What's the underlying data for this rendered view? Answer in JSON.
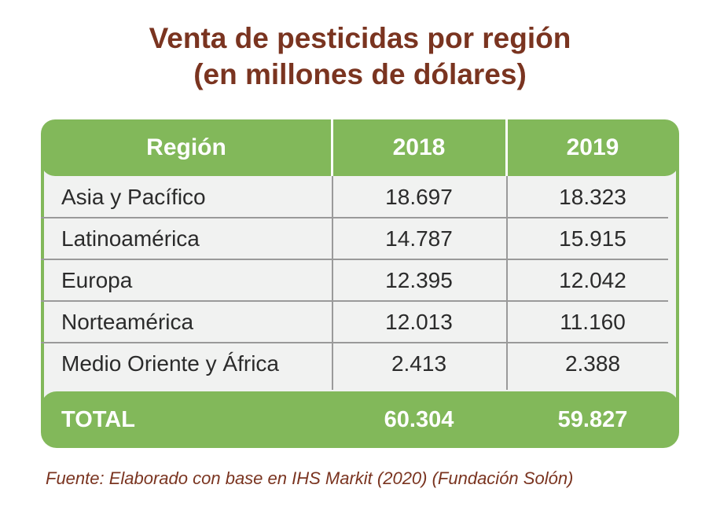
{
  "title_lines": [
    "Venta de pesticidas por región",
    "(en millones de dólares)"
  ],
  "chart_data": {
    "type": "table",
    "title": "Venta de pesticidas por región (en millones de dólares)",
    "columns": [
      "Región",
      "2018",
      "2019"
    ],
    "rows": [
      {
        "region": "Asia y Pacífico",
        "y2018": "18.697",
        "y2019": "18.323"
      },
      {
        "region": "Latinoamérica",
        "y2018": "14.787",
        "y2019": "15.915"
      },
      {
        "region": "Europa",
        "y2018": "12.395",
        "y2019": "12.042"
      },
      {
        "region": "Norteamérica",
        "y2018": "12.013",
        "y2019": "11.160"
      },
      {
        "region": "Medio Oriente y África",
        "y2018": "2.413",
        "y2019": "2.388"
      }
    ],
    "total": {
      "label": "TOTAL",
      "y2018": "60.304",
      "y2019": "59.827"
    }
  },
  "source": "Fuente: Elaborado con base en IHS Markit (2020) (Fundación Solón)",
  "colors": {
    "title": "#7a3420",
    "header": "#82b85a",
    "body": "#f1f2f1",
    "grid": "#9a9a9a"
  }
}
